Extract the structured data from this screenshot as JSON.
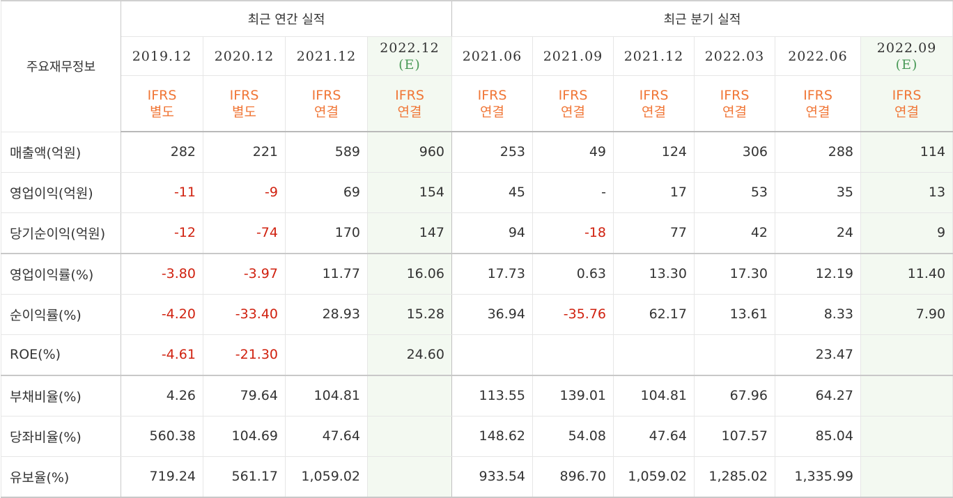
{
  "table": {
    "label_header": "주요재무정보",
    "annual_group": "최근 연간 실적",
    "quarter_group": "최근 분기 실적",
    "columns": [
      {
        "date": "2019.12",
        "est": "",
        "std": "IFRS",
        "type": "별도"
      },
      {
        "date": "2020.12",
        "est": "",
        "std": "IFRS",
        "type": "별도"
      },
      {
        "date": "2021.12",
        "est": "",
        "std": "IFRS",
        "type": "연결"
      },
      {
        "date": "2022.12",
        "est": "(E)",
        "std": "IFRS",
        "type": "연결"
      },
      {
        "date": "2021.06",
        "est": "",
        "std": "IFRS",
        "type": "연결"
      },
      {
        "date": "2021.09",
        "est": "",
        "std": "IFRS",
        "type": "연결"
      },
      {
        "date": "2021.12",
        "est": "",
        "std": "IFRS",
        "type": "연결"
      },
      {
        "date": "2022.03",
        "est": "",
        "std": "IFRS",
        "type": "연결"
      },
      {
        "date": "2022.06",
        "est": "",
        "std": "IFRS",
        "type": "연결"
      },
      {
        "date": "2022.09",
        "est": "(E)",
        "std": "IFRS",
        "type": "연결"
      }
    ],
    "rows": [
      {
        "label": "매출액(억원)",
        "values": [
          "282",
          "221",
          "589",
          "960",
          "253",
          "49",
          "124",
          "306",
          "288",
          "114"
        ]
      },
      {
        "label": "영업이익(억원)",
        "values": [
          "-11",
          "-9",
          "69",
          "154",
          "45",
          "-",
          "17",
          "53",
          "35",
          "13"
        ]
      },
      {
        "label": "당기순이익(억원)",
        "values": [
          "-12",
          "-74",
          "170",
          "147",
          "94",
          "-18",
          "77",
          "42",
          "24",
          "9"
        ]
      },
      {
        "label": "영업이익률(%)",
        "values": [
          "-3.80",
          "-3.97",
          "11.77",
          "16.06",
          "17.73",
          "0.63",
          "13.30",
          "17.30",
          "12.19",
          "11.40"
        ]
      },
      {
        "label": "순이익률(%)",
        "values": [
          "-4.20",
          "-33.40",
          "28.93",
          "15.28",
          "36.94",
          "-35.76",
          "62.17",
          "13.61",
          "8.33",
          "7.90"
        ]
      },
      {
        "label": "ROE(%)",
        "values": [
          "-4.61",
          "-21.30",
          "",
          "24.60",
          "",
          "",
          "",
          "",
          "23.47",
          ""
        ]
      },
      {
        "label": "부채비율(%)",
        "values": [
          "4.26",
          "79.64",
          "104.81",
          "",
          "113.55",
          "139.01",
          "104.81",
          "67.96",
          "64.27",
          ""
        ]
      },
      {
        "label": "당좌비율(%)",
        "values": [
          "560.38",
          "104.69",
          "47.64",
          "",
          "148.62",
          "54.08",
          "47.64",
          "107.57",
          "85.04",
          ""
        ]
      },
      {
        "label": "유보율(%)",
        "values": [
          "719.24",
          "561.17",
          "1,059.02",
          "",
          "933.54",
          "896.70",
          "1,059.02",
          "1,285.02",
          "1,335.99",
          ""
        ]
      }
    ]
  },
  "colors": {
    "negative": "#d0210f",
    "ifrs": "#f07636",
    "estimate_text": "#4a9a58",
    "estimate_bg": "#f3f9f1"
  }
}
